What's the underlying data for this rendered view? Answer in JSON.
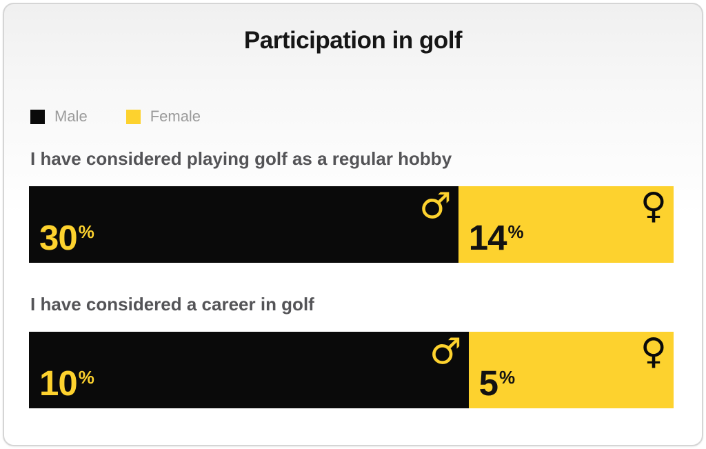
{
  "chart_data": {
    "type": "bar",
    "title": "Participation in golf",
    "unit": "%",
    "legend": [
      {
        "label": "Male",
        "color": "#0a0a0a"
      },
      {
        "label": "Female",
        "color": "#fdd22e"
      }
    ],
    "icons": {
      "male_symbol": "♂",
      "female_symbol": "♀"
    },
    "colors": {
      "male_bar": "#0a0a0a",
      "female_bar": "#fdd22e",
      "male_value_text": "#fdd22e",
      "female_value_text": "#121212",
      "title_text": "#161616",
      "question_text": "#545457",
      "legend_text": "#9a9a9a"
    },
    "rows": [
      {
        "question": "I have considered playing golf as a regular hobby",
        "male_value": 30,
        "female_value": 14,
        "male_width_pct": 66.6
      },
      {
        "question": "I have considered a career in golf",
        "male_value": 10,
        "female_value": 5,
        "male_width_pct": 68.2
      }
    ],
    "layout": {
      "orientation": "horizontal-stacked",
      "value_label_position": "inside-bottom-left",
      "gender_icon_position": "inside-top-right",
      "legend_position": "top-left",
      "grid": false,
      "axes": false
    }
  }
}
